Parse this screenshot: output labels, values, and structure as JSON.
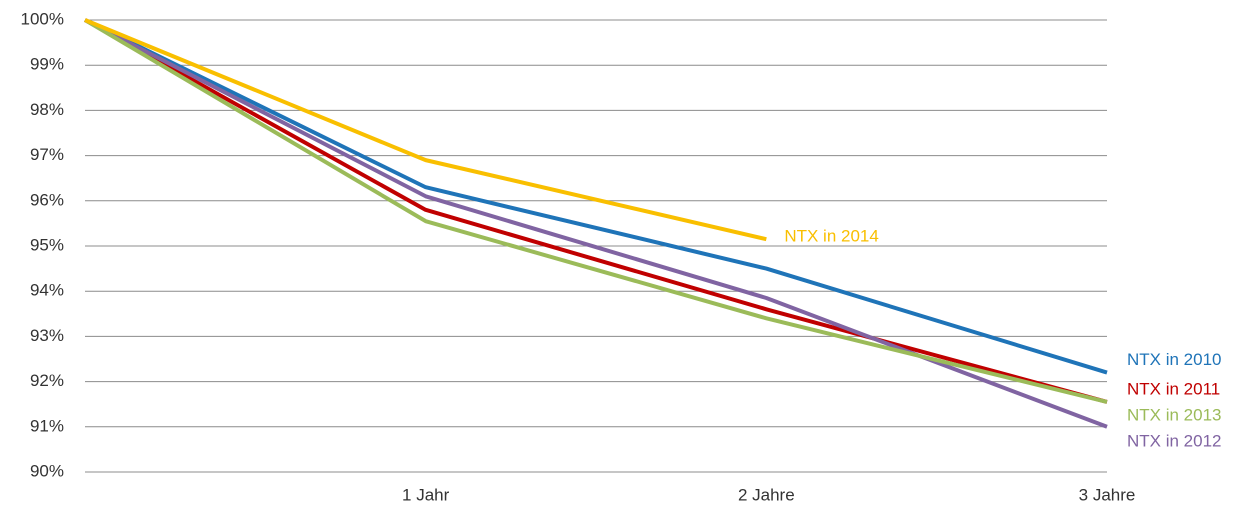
{
  "chart_data": {
    "type": "line",
    "categories": [
      null,
      "1 Jahr",
      "2 Jahre",
      "3 Jahre"
    ],
    "series": [
      {
        "name": "NTX in 2010",
        "color": "#1f74b8",
        "values": [
          100,
          96.3,
          94.5,
          92.2
        ]
      },
      {
        "name": "NTX in 2011",
        "color": "#c00000",
        "values": [
          100,
          95.8,
          93.6,
          91.55
        ]
      },
      {
        "name": "NTX in 2012",
        "color": "#8064a2",
        "values": [
          100,
          96.1,
          93.85,
          91.0
        ]
      },
      {
        "name": "NTX in 2013",
        "color": "#9bbb59",
        "values": [
          100,
          95.55,
          93.4,
          91.55
        ]
      },
      {
        "name": "NTX in 2014",
        "color": "#f9bf00",
        "values": [
          100,
          96.9,
          95.15,
          null
        ]
      }
    ],
    "ylim": [
      90,
      100
    ],
    "yticks": [
      {
        "value": 90,
        "label": "90%"
      },
      {
        "value": 91,
        "label": "91%"
      },
      {
        "value": 92,
        "label": "92%"
      },
      {
        "value": 93,
        "label": "93%"
      },
      {
        "value": 94,
        "label": "94%"
      },
      {
        "value": 95,
        "label": "95%"
      },
      {
        "value": 96,
        "label": "96%"
      },
      {
        "value": 97,
        "label": "97%"
      },
      {
        "value": 98,
        "label": "98%"
      },
      {
        "value": 99,
        "label": "99%"
      },
      {
        "value": 100,
        "label": "100%"
      }
    ],
    "grid": true
  }
}
